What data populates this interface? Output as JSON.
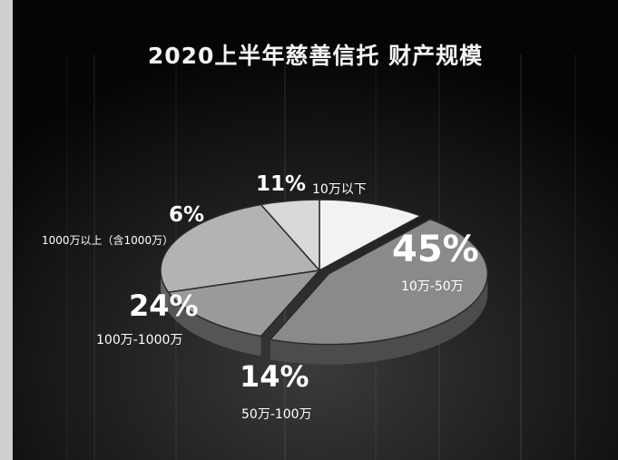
{
  "chart_data": {
    "type": "pie",
    "title": "2020上半年慈善信托 财产规模",
    "slices": [
      {
        "label": "10万以下",
        "value": 11,
        "value_label": "11%",
        "color": "#f2f2f2"
      },
      {
        "label": "10万-50万",
        "value": 45,
        "value_label": "45%",
        "color": "#8a8a8a"
      },
      {
        "label": "50万-100万",
        "value": 14,
        "value_label": "14%",
        "color": "#9a9a9a"
      },
      {
        "label": "100万-1000万",
        "value": 24,
        "value_label": "24%",
        "color": "#b3b3b3"
      },
      {
        "label": "1000万以上（含1000万）",
        "value": 6,
        "value_label": "6%",
        "color": "#d9d9d9"
      }
    ]
  }
}
